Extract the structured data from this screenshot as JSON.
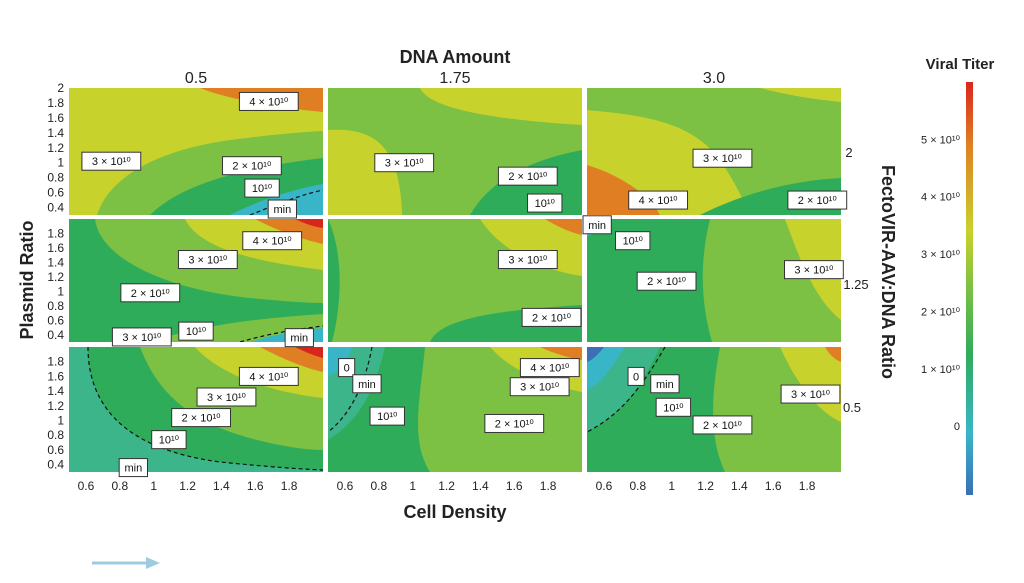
{
  "chart_data": {
    "type": "heatmap",
    "title": "DNA Amount",
    "xlabel": "Cell Density",
    "ylabel": "Plasmid Ratio",
    "right_axis_label": "FectoVIR-AAV:DNA Ratio",
    "colorbar_title": "Viral Titer",
    "colorbar_ticks": [
      {
        "label": "0",
        "value": 0
      },
      {
        "label": "1 × 10¹⁰",
        "value": 10000000000.0
      },
      {
        "label": "2 × 10¹⁰",
        "value": 20000000000.0
      },
      {
        "label": "3 × 10¹⁰",
        "value": 30000000000.0
      },
      {
        "label": "4 × 10¹⁰",
        "value": 40000000000.0
      },
      {
        "label": "5 × 10¹⁰",
        "value": 50000000000.0
      }
    ],
    "colorbar_range": [
      -12000000000.0,
      60000000000.0
    ],
    "columns": [
      "0.5",
      "1.75",
      "3.0"
    ],
    "rows": [
      "2",
      "1.25",
      "0.5"
    ],
    "x_range": [
      0.5,
      2.0
    ],
    "x_ticks": [
      "0.6",
      "0.8",
      "1",
      "1.2",
      "1.4",
      "1.6",
      "1.8"
    ],
    "y_range": [
      0.3,
      2.0
    ],
    "y_ticks_top": [
      "2",
      "1.8",
      "1.6",
      "1.4",
      "1.2",
      "1",
      "0.8",
      "0.6",
      "0.4"
    ],
    "y_ticks_other": [
      "1.8",
      "1.6",
      "1.4",
      "1.2",
      "1",
      "0.8",
      "0.6",
      "0.4"
    ],
    "panels": [
      {
        "row": 0,
        "col": 0,
        "labels": [
          {
            "text": "4 × 10¹⁰",
            "x": 1.68,
            "y": 1.82
          },
          {
            "text": "3 × 10¹⁰",
            "x": 0.75,
            "y": 1.02
          },
          {
            "text": "2 × 10¹⁰",
            "x": 1.58,
            "y": 0.96
          },
          {
            "text": "10¹⁰",
            "x": 1.64,
            "y": 0.66
          },
          {
            "text": "min",
            "x": 1.76,
            "y": 0.38
          }
        ]
      },
      {
        "row": 0,
        "col": 1,
        "labels": [
          {
            "text": "3 × 10¹⁰",
            "x": 0.95,
            "y": 1.0
          },
          {
            "text": "2 × 10¹⁰",
            "x": 1.68,
            "y": 0.82
          },
          {
            "text": "10¹⁰",
            "x": 1.78,
            "y": 0.46
          }
        ]
      },
      {
        "row": 0,
        "col": 2,
        "labels": [
          {
            "text": "3 × 10¹⁰",
            "x": 1.3,
            "y": 1.06
          },
          {
            "text": "4 × 10¹⁰",
            "x": 0.92,
            "y": 0.5
          },
          {
            "text": "2 × 10¹⁰",
            "x": 1.86,
            "y": 0.5
          }
        ]
      },
      {
        "row": 1,
        "col": 0,
        "labels": [
          {
            "text": "4 × 10¹⁰",
            "x": 1.7,
            "y": 1.7
          },
          {
            "text": "3 × 10¹⁰",
            "x": 1.32,
            "y": 1.44
          },
          {
            "text": "2 × 10¹⁰",
            "x": 0.98,
            "y": 0.98
          },
          {
            "text": "3 × 10¹⁰",
            "x": 0.93,
            "y": 0.37
          },
          {
            "text": "10¹⁰",
            "x": 1.25,
            "y": 0.45
          },
          {
            "text": "min",
            "x": 1.86,
            "y": 0.36
          }
        ]
      },
      {
        "row": 1,
        "col": 1,
        "labels": [
          {
            "text": "3 × 10¹⁰",
            "x": 1.68,
            "y": 1.44
          },
          {
            "text": "2 × 10¹⁰",
            "x": 1.82,
            "y": 0.64
          }
        ]
      },
      {
        "row": 1,
        "col": 2,
        "labels": [
          {
            "text": "min",
            "x": 0.56,
            "y": 1.92
          },
          {
            "text": "10¹⁰",
            "x": 0.77,
            "y": 1.7
          },
          {
            "text": "2 × 10¹⁰",
            "x": 0.97,
            "y": 1.14
          },
          {
            "text": "3 × 10¹⁰",
            "x": 1.84,
            "y": 1.3
          }
        ]
      },
      {
        "row": 2,
        "col": 0,
        "labels": [
          {
            "text": "4 × 10¹⁰",
            "x": 1.68,
            "y": 1.6
          },
          {
            "text": "3 × 10¹⁰",
            "x": 1.43,
            "y": 1.32
          },
          {
            "text": "2 × 10¹⁰",
            "x": 1.28,
            "y": 1.04
          },
          {
            "text": "10¹⁰",
            "x": 1.09,
            "y": 0.74
          },
          {
            "text": "min",
            "x": 0.88,
            "y": 0.36
          }
        ]
      },
      {
        "row": 2,
        "col": 1,
        "labels": [
          {
            "text": "0",
            "x": 0.61,
            "y": 1.72
          },
          {
            "text": "min",
            "x": 0.73,
            "y": 1.5
          },
          {
            "text": "10¹⁰",
            "x": 0.85,
            "y": 1.06
          },
          {
            "text": "4 × 10¹⁰",
            "x": 1.81,
            "y": 1.72
          },
          {
            "text": "3 × 10¹⁰",
            "x": 1.75,
            "y": 1.46
          },
          {
            "text": "2 × 10¹⁰",
            "x": 1.6,
            "y": 0.96
          }
        ]
      },
      {
        "row": 2,
        "col": 2,
        "labels": [
          {
            "text": "0",
            "x": 0.79,
            "y": 1.6
          },
          {
            "text": "min",
            "x": 0.96,
            "y": 1.5
          },
          {
            "text": "10¹⁰",
            "x": 1.01,
            "y": 1.18
          },
          {
            "text": "2 × 10¹⁰",
            "x": 1.3,
            "y": 0.94
          },
          {
            "text": "3 × 10¹⁰",
            "x": 1.82,
            "y": 1.36
          }
        ]
      }
    ]
  },
  "colors": {
    "scale": [
      "#3b6fb6",
      "#38b6c8",
      "#2fac5a",
      "#7cc044",
      "#c8d22c",
      "#e07e24",
      "#d9261c"
    ],
    "arrow": "#9fcbe0"
  },
  "icons": {
    "arrow": "right-arrow-icon"
  }
}
